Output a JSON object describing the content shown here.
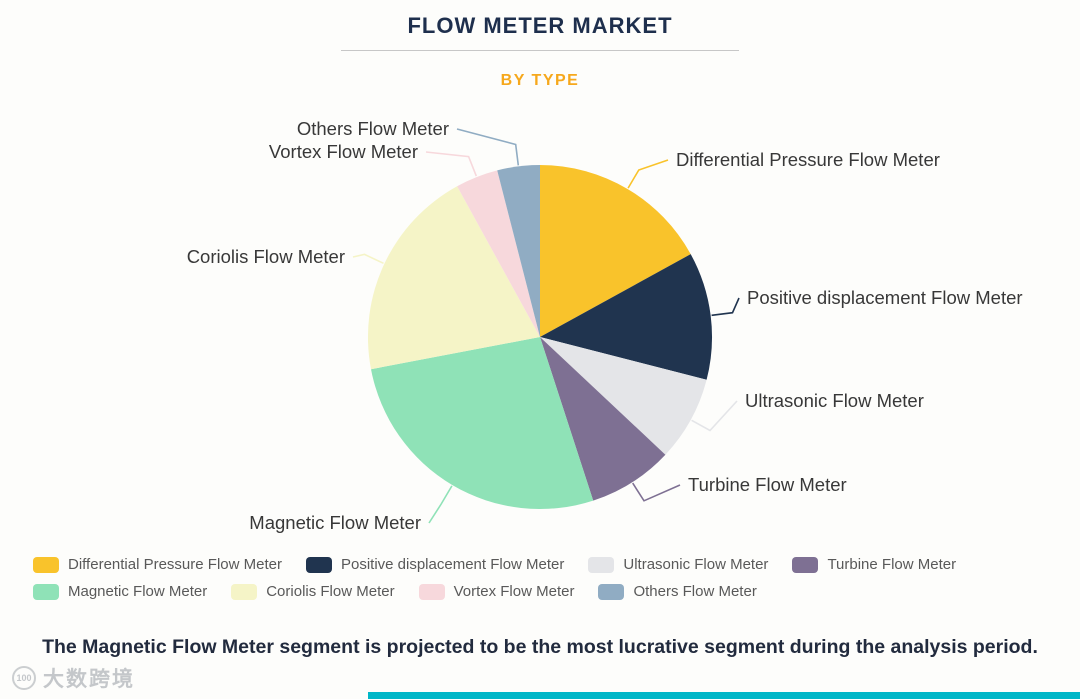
{
  "header": {
    "title": "FLOW METER MARKET",
    "subtitle": "BY TYPE"
  },
  "chart_data": {
    "type": "pie",
    "title": "FLOW METER MARKET",
    "subtitle": "BY TYPE",
    "note": "No numeric data labels are shown in the figure; values are percentages estimated from arc angles.",
    "start_angle_deg": 0,
    "direction": "clockwise",
    "legend_position": "bottom",
    "segments": [
      {
        "label": "Differential Pressure Flow Meter",
        "value": 17,
        "color": "#F9C32B"
      },
      {
        "label": "Positive displacement Flow Meter",
        "value": 12,
        "color": "#20344F"
      },
      {
        "label": "Ultrasonic Flow Meter",
        "value": 8,
        "color": "#E4E5E8"
      },
      {
        "label": "Turbine Flow Meter",
        "value": 8,
        "color": "#7E7093"
      },
      {
        "label": "Magnetic Flow Meter",
        "value": 27,
        "color": "#8FE2B7"
      },
      {
        "label": "Coriolis Flow Meter",
        "value": 20,
        "color": "#F5F4C7"
      },
      {
        "label": "Vortex Flow Meter",
        "value": 4,
        "color": "#F7D8DC"
      },
      {
        "label": "Others Flow Meter",
        "value": 4,
        "color": "#90ACC3"
      }
    ]
  },
  "caption": "The Magnetic Flow Meter segment is projected to be the most lucrative segment during the analysis period.",
  "watermark": {
    "badge": "100",
    "text": "大数跨境"
  },
  "accent_bar_color": "#00B7C8"
}
